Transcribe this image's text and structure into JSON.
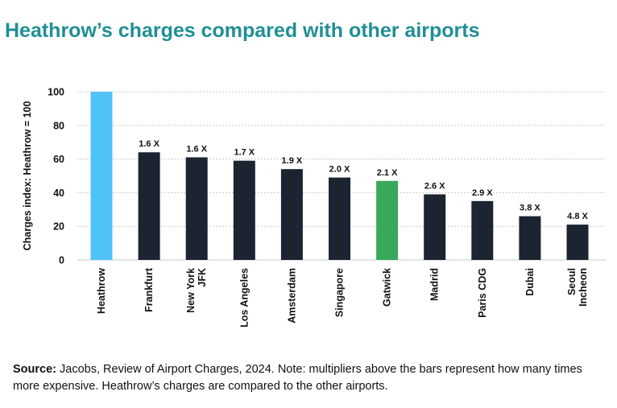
{
  "title": "Heathrow’s charges compared with other airports",
  "colors": {
    "title": "#1f8f94",
    "highlight_heathrow": "#4fc3f7",
    "highlight_gatwick": "#3aa85a",
    "default_bar": "#1c2331",
    "grid": "#c8c8c8",
    "text": "#111111"
  },
  "footnote": {
    "source_label": "Source:",
    "text": "Jacobs, Review of Airport Charges, 2024. Note: multipliers above the bars represent how many times more expensive. Heathrow’s charges are compared to the other airports."
  },
  "chart_data": {
    "type": "bar",
    "ylabel": "Charges index: Heathrow = 100",
    "xlabel": "",
    "ylim": [
      0,
      100
    ],
    "yticks": [
      0,
      20,
      40,
      60,
      80,
      100
    ],
    "grid": true,
    "categories": [
      [
        "Heathrow"
      ],
      [
        "Frankfurt"
      ],
      [
        "New York",
        "JFK"
      ],
      [
        "Los Angeles"
      ],
      [
        "Amsterdam"
      ],
      [
        "Singapore"
      ],
      [
        "Gatwick"
      ],
      [
        "Madrid"
      ],
      [
        "Paris CDG"
      ],
      [
        "Dubai"
      ],
      [
        "Seoul",
        "Incheon"
      ]
    ],
    "values": [
      100,
      64,
      61,
      59,
      54,
      49,
      47,
      39,
      35,
      26,
      21
    ],
    "data_labels": [
      "",
      "1.6 X",
      "1.6 X",
      "1.7 X",
      "1.9 X",
      "2.0 X",
      "2.1 X",
      "2.6 X",
      "2.9 X",
      "3.8 X",
      "4.8 X"
    ],
    "bar_colors": [
      "highlight_heathrow",
      "default_bar",
      "default_bar",
      "default_bar",
      "default_bar",
      "default_bar",
      "highlight_gatwick",
      "default_bar",
      "default_bar",
      "default_bar",
      "default_bar"
    ]
  }
}
